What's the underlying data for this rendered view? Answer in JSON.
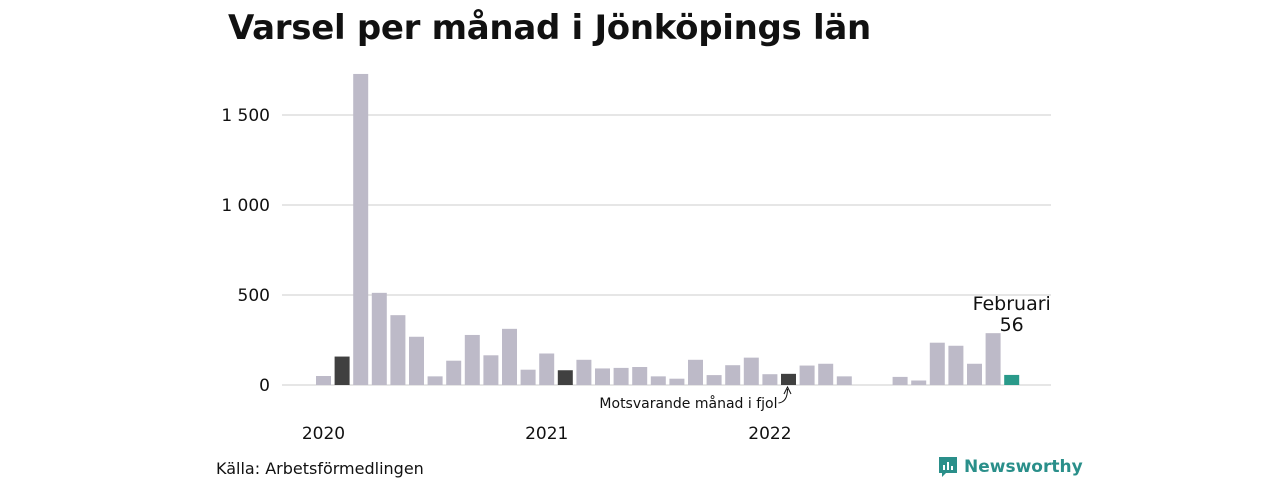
{
  "chart_data": {
    "type": "bar",
    "title": "Varsel per månad i Jönköpings län",
    "source": "Källa: Arbetsförmedlingen",
    "brand": "Newsworthy",
    "ylim": [
      0,
      1750
    ],
    "yticks": [
      0,
      500,
      1000,
      1500
    ],
    "ytick_labels": [
      "0",
      "500",
      "1 000",
      "1 500"
    ],
    "grid": true,
    "x_labels": [
      {
        "label": "2020",
        "index": 0
      },
      {
        "label": "2021",
        "index": 12
      },
      {
        "label": "2022",
        "index": 24
      }
    ],
    "months": [
      "2020-01",
      "2020-02",
      "2020-03",
      "2020-04",
      "2020-05",
      "2020-06",
      "2020-07",
      "2020-08",
      "2020-09",
      "2020-10",
      "2020-11",
      "2020-12",
      "2021-01",
      "2021-02",
      "2021-03",
      "2021-04",
      "2021-05",
      "2021-06",
      "2021-07",
      "2021-08",
      "2021-09",
      "2021-10",
      "2021-11",
      "2021-12",
      "2022-01",
      "2022-02",
      "2022-03",
      "2022-04",
      "2022-05",
      "2022-06",
      "2022-07",
      "2022-08",
      "2022-09",
      "2022-10",
      "2022-11",
      "2022-12",
      "2023-01",
      "2023-02"
    ],
    "values": [
      50,
      158,
      1728,
      512,
      388,
      268,
      48,
      135,
      278,
      165,
      312,
      85,
      175,
      82,
      140,
      92,
      95,
      100,
      48,
      35,
      140,
      55,
      110,
      152,
      60,
      62,
      108,
      118,
      48,
      null,
      null,
      45,
      25,
      235,
      218,
      118,
      288,
      56
    ],
    "highlight_same_month": [
      1,
      13,
      25
    ],
    "current_index": 37,
    "colors": {
      "default": "#bdbac8",
      "same_month": "#404040",
      "current": "#2a9a8a",
      "grid": "#dedede"
    },
    "callout": {
      "label": "Februari",
      "value": "56"
    },
    "annotation": "Motsvarande månad i fjol"
  }
}
